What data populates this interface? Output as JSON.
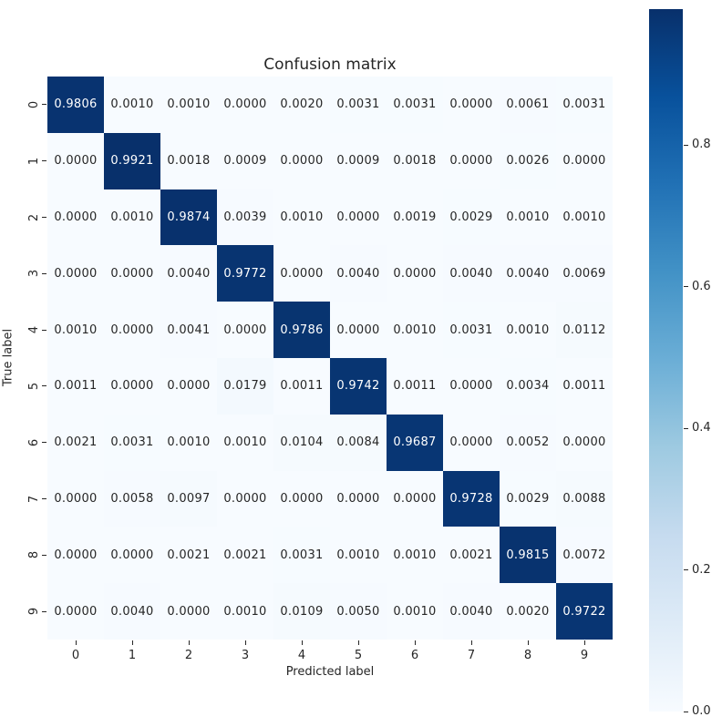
{
  "chart_data": {
    "type": "heatmap",
    "title": "Confusion matrix",
    "xlabel": "Predicted label",
    "ylabel": "True label",
    "x_tick_labels": [
      "0",
      "1",
      "2",
      "3",
      "4",
      "5",
      "6",
      "7",
      "8",
      "9"
    ],
    "y_tick_labels": [
      "0",
      "1",
      "2",
      "3",
      "4",
      "5",
      "6",
      "7",
      "8",
      "9"
    ],
    "matrix": [
      [
        0.9806,
        0.001,
        0.001,
        0.0,
        0.002,
        0.0031,
        0.0031,
        0.0,
        0.0061,
        0.0031
      ],
      [
        0.0,
        0.9921,
        0.0018,
        0.0009,
        0.0,
        0.0009,
        0.0018,
        0.0,
        0.0026,
        0.0
      ],
      [
        0.0,
        0.001,
        0.9874,
        0.0039,
        0.001,
        0.0,
        0.0019,
        0.0029,
        0.001,
        0.001
      ],
      [
        0.0,
        0.0,
        0.004,
        0.9772,
        0.0,
        0.004,
        0.0,
        0.004,
        0.004,
        0.0069
      ],
      [
        0.001,
        0.0,
        0.0041,
        0.0,
        0.9786,
        0.0,
        0.001,
        0.0031,
        0.001,
        0.0112
      ],
      [
        0.0011,
        0.0,
        0.0,
        0.0179,
        0.0011,
        0.9742,
        0.0011,
        0.0,
        0.0034,
        0.0011
      ],
      [
        0.0021,
        0.0031,
        0.001,
        0.001,
        0.0104,
        0.0084,
        0.9687,
        0.0,
        0.0052,
        0.0
      ],
      [
        0.0,
        0.0058,
        0.0097,
        0.0,
        0.0,
        0.0,
        0.0,
        0.9728,
        0.0029,
        0.0088
      ],
      [
        0.0,
        0.0,
        0.0021,
        0.0021,
        0.0031,
        0.001,
        0.001,
        0.0021,
        0.9815,
        0.0072
      ],
      [
        0.0,
        0.004,
        0.0,
        0.001,
        0.0109,
        0.005,
        0.001,
        0.004,
        0.002,
        0.9722
      ]
    ],
    "annotation_decimals": 4,
    "vmin": 0.0,
    "vmax": 0.9921,
    "colormap": {
      "name": "Blues",
      "anchors": [
        "#f7fbff",
        "#deebf7",
        "#c6dbef",
        "#9ecae1",
        "#6baed6",
        "#4292c6",
        "#2171b5",
        "#08519c",
        "#08306b"
      ]
    },
    "colorbar_ticks": [
      0.0,
      0.2,
      0.4,
      0.6,
      0.8
    ],
    "colorbar_tick_decimals": 1,
    "annotation_text_dark": "#262626",
    "annotation_text_light": "#ffffff",
    "legend_position": "right-colorbar",
    "grid": false
  }
}
